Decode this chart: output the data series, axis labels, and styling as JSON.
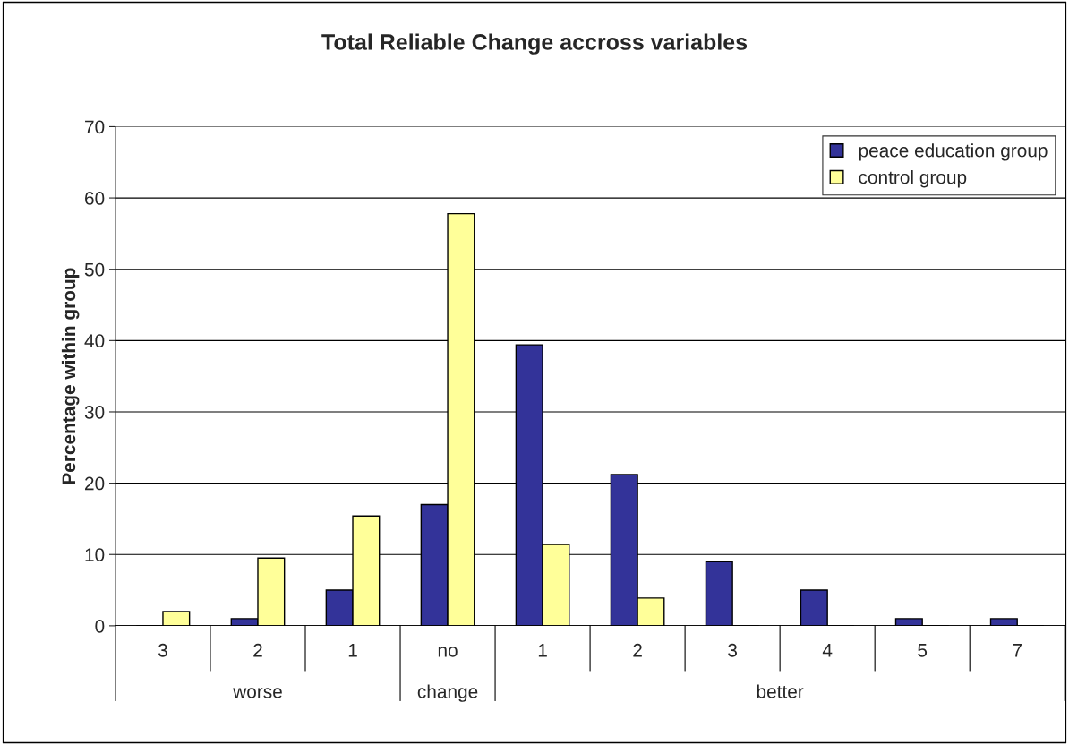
{
  "chart_data": {
    "type": "bar",
    "title": "Total Reliable Change accross variables",
    "ylabel": "Percentage within group",
    "categories": [
      "3",
      "2",
      "1",
      "no",
      "1",
      "2",
      "3",
      "4",
      "5",
      "7"
    ],
    "series": [
      {
        "name": "peace education group",
        "color": "#333399",
        "values": [
          0,
          1,
          5,
          17,
          39.4,
          21.2,
          9,
          5,
          1,
          1
        ]
      },
      {
        "name": "control group",
        "color": "#ffff99",
        "values": [
          2,
          9.5,
          15.4,
          57.8,
          11.4,
          3.9,
          0,
          0,
          0,
          0
        ]
      }
    ],
    "annotations": [
      "worse",
      "change",
      "better"
    ],
    "ylim": [
      0,
      70
    ],
    "yticks": [
      0,
      10,
      20,
      30,
      40,
      50,
      60,
      70
    ],
    "grid": "y",
    "legend": "top right"
  }
}
